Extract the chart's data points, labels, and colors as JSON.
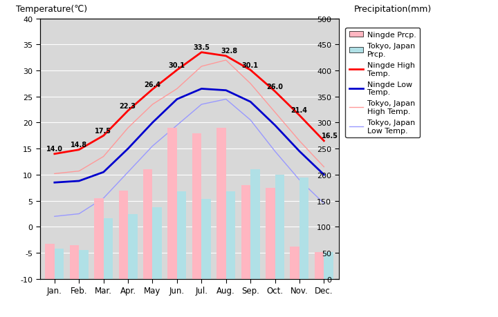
{
  "months": [
    "Jan.",
    "Feb.",
    "Mar.",
    "Apr.",
    "May",
    "Jun.",
    "Jul.",
    "Aug.",
    "Sep.",
    "Oct.",
    "Nov.",
    "Dec."
  ],
  "ningde_high": [
    14.0,
    14.8,
    17.5,
    22.3,
    26.4,
    30.1,
    33.5,
    32.8,
    30.1,
    26.0,
    21.4,
    16.5
  ],
  "ningde_low": [
    8.5,
    8.8,
    10.5,
    15.0,
    20.0,
    24.5,
    26.5,
    26.2,
    24.0,
    19.5,
    14.5,
    10.0
  ],
  "tokyo_high": [
    10.2,
    10.7,
    13.5,
    19.0,
    23.5,
    26.5,
    30.8,
    32.0,
    27.5,
    22.0,
    16.5,
    11.5
  ],
  "tokyo_low": [
    2.0,
    2.5,
    5.5,
    10.5,
    15.5,
    19.5,
    23.5,
    24.5,
    20.5,
    14.5,
    9.0,
    4.5
  ],
  "ningde_prcp": [
    68,
    65,
    155,
    170,
    210,
    290,
    280,
    290,
    180,
    175,
    62,
    52
  ],
  "tokyo_prcp": [
    58,
    56,
    117,
    125,
    138,
    168,
    153,
    168,
    210,
    200,
    195,
    51
  ],
  "temp_ylim": [
    -10,
    40
  ],
  "prcp_ylim": [
    0,
    500
  ],
  "temp_ticks": [
    -10,
    -5,
    0,
    5,
    10,
    15,
    20,
    25,
    30,
    35,
    40
  ],
  "prcp_ticks": [
    0,
    50,
    100,
    150,
    200,
    250,
    300,
    350,
    400,
    450,
    500
  ],
  "bg_color": "#d8d8d8",
  "ningde_prcp_color": "#ffb6c1",
  "tokyo_prcp_color": "#b0e0e6",
  "ningde_high_color": "#ff0000",
  "ningde_low_color": "#0000cd",
  "tokyo_high_color": "#ff9999",
  "tokyo_low_color": "#9999ff",
  "left_ylabel": "Temperature(℃)",
  "right_ylabel": "Precipitation(mm)",
  "legend_labels": [
    "Ningde Prcp.",
    "Tokyo, Japan\nPrcp.",
    "Ningde High\nTemp.",
    "Ningde Low\nTemp.",
    "Tokyo, Japan\nHigh Temp.",
    "Tokyo, Japan\nLow Temp."
  ]
}
